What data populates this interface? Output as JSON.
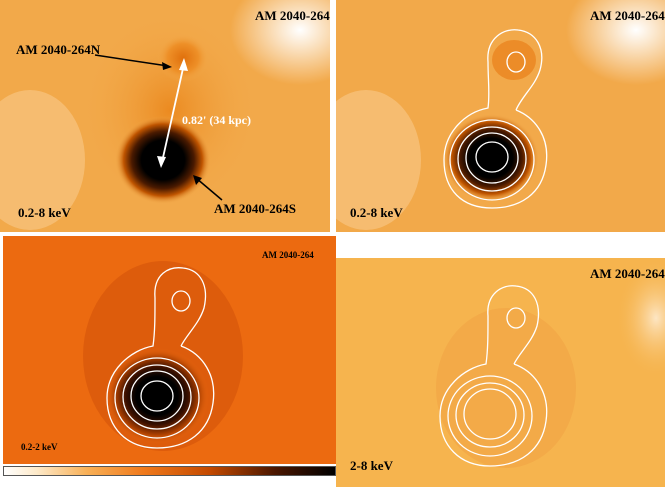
{
  "panels": [
    {
      "title": "AM 2040-264",
      "band": "0.2-8 keV",
      "annotations": {
        "north": "AM 2040-264N",
        "south": "AM 2040-264S",
        "separation": "0.82' (34 kpc)"
      }
    },
    {
      "title": "AM 2040-264",
      "band": "0.2-8 keV"
    },
    {
      "title": "AM 2040-264",
      "band": "0.2-2 keV"
    },
    {
      "title": "AM 2040-264",
      "band": "2-8 keV"
    }
  ],
  "colors": {
    "background_broad": "#f2a94a",
    "background_soft": "#ec6a10",
    "background_hard": "#f6b44e",
    "core": "#000000",
    "contour": "#ffffff"
  }
}
